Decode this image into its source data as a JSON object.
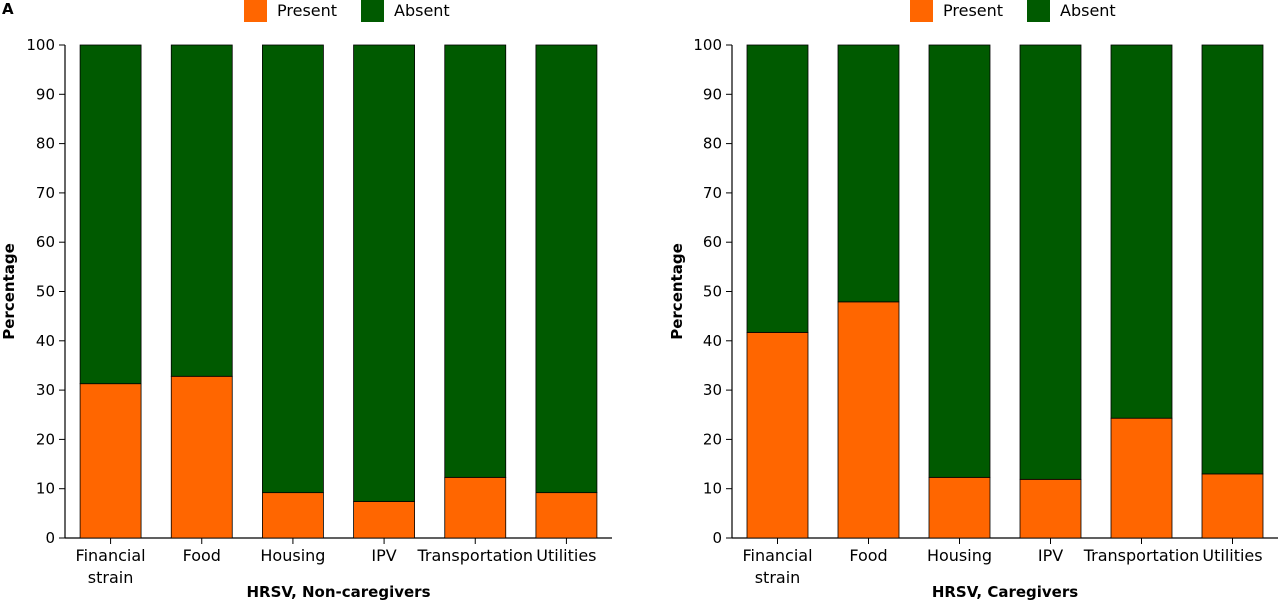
{
  "panel_label": "A",
  "colors": {
    "present": "#ff6600",
    "absent": "#005a00"
  },
  "chart_data": [
    {
      "type": "bar",
      "stacked": true,
      "xlabel": "HRSV, Non-caregivers",
      "ylabel": "Percentage",
      "ylim": [
        0,
        100
      ],
      "yticks": [
        0,
        10,
        20,
        30,
        40,
        50,
        60,
        70,
        80,
        90,
        100
      ],
      "legend": [
        "Present",
        "Absent"
      ],
      "legend_position": "top-center",
      "categories": [
        [
          "Financial",
          "strain"
        ],
        [
          "Food"
        ],
        [
          "Housing"
        ],
        [
          "IPV"
        ],
        [
          "Transportation"
        ],
        [
          "Utilities"
        ]
      ],
      "series": [
        {
          "name": "Present",
          "values": [
            31.3,
            32.8,
            9.2,
            7.4,
            12.3,
            9.2
          ]
        },
        {
          "name": "Absent",
          "values": [
            68.7,
            67.2,
            90.8,
            92.6,
            87.7,
            90.8
          ]
        }
      ]
    },
    {
      "type": "bar",
      "stacked": true,
      "xlabel": "HRSV, Caregivers",
      "ylabel": "Percentage",
      "ylim": [
        0,
        100
      ],
      "yticks": [
        0,
        10,
        20,
        30,
        40,
        50,
        60,
        70,
        80,
        90,
        100
      ],
      "legend": [
        "Present",
        "Absent"
      ],
      "legend_position": "top-center",
      "categories": [
        [
          "Financial",
          "strain"
        ],
        [
          "Food"
        ],
        [
          "Housing"
        ],
        [
          "IPV"
        ],
        [
          "Transportation"
        ],
        [
          "Utilities"
        ]
      ],
      "series": [
        {
          "name": "Present",
          "values": [
            41.7,
            47.9,
            12.3,
            11.9,
            24.3,
            13.0
          ]
        },
        {
          "name": "Absent",
          "values": [
            58.3,
            52.1,
            87.7,
            88.1,
            75.7,
            87.0
          ]
        }
      ]
    }
  ]
}
